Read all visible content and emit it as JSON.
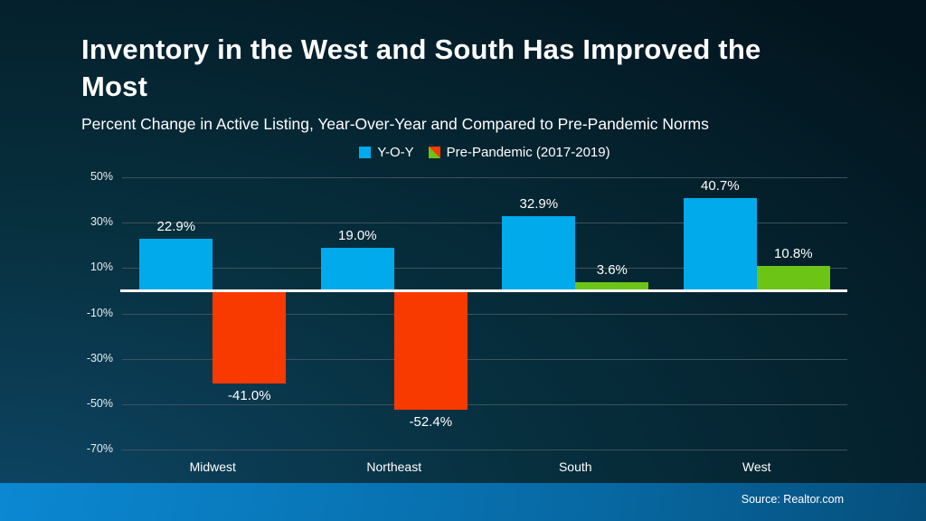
{
  "header": {
    "title": "Inventory in the West and South Has Improved the Most",
    "subtitle": "Percent Change in Active Listing, Year-Over-Year and Compared to Pre-Pandemic Norms"
  },
  "legend": {
    "items": [
      {
        "label": "Y-O-Y",
        "swatch": "solid-blue"
      },
      {
        "label": "Pre-Pandemic (2017-2019)",
        "swatch": "split-green-red"
      }
    ]
  },
  "footer": {
    "source": "Source: Realtor.com"
  },
  "colors": {
    "yoy_bar": "#00AAEB",
    "pre_pandemic_positive": "#6CC417",
    "pre_pandemic_negative": "#F93A00",
    "zero_line": "#FFFFFF",
    "gridline": "#3E525C",
    "background_dark": "#02141D",
    "background_glow": "#0E4666",
    "footer_gradient_left": "#0B88D2",
    "footer_gradient_right": "#064F7C"
  },
  "chart_data": {
    "type": "bar",
    "title": "Inventory in the West and South Has Improved the Most",
    "subtitle": "Percent Change in Active Listing, Year-Over-Year and Compared to Pre-Pandemic Norms",
    "categories": [
      "Midwest",
      "Northeast",
      "South",
      "West"
    ],
    "series": [
      {
        "name": "Y-O-Y",
        "values": [
          22.9,
          19.0,
          32.9,
          40.7
        ],
        "labels": [
          "22.9%",
          "19.0%",
          "32.9%",
          "40.7%"
        ],
        "color": "#00AAEB"
      },
      {
        "name": "Pre-Pandemic (2017-2019)",
        "values": [
          -41.0,
          -52.4,
          3.6,
          10.8
        ],
        "labels": [
          "-41.0%",
          "-52.4%",
          "3.6%",
          "10.8%"
        ],
        "positive_color": "#6CC417",
        "negative_color": "#F93A00"
      }
    ],
    "y_tick_values": [
      50,
      30,
      10,
      -10,
      -30,
      -50,
      -70
    ],
    "y_tick_labels": [
      "50%",
      "30%",
      "10%",
      "-10%",
      "-30%",
      "-50%",
      "-70%"
    ],
    "ylim": [
      -70,
      50
    ],
    "xlabel": "",
    "ylabel": "",
    "grid": true,
    "legend_position": "top-center",
    "data_labels": true
  }
}
